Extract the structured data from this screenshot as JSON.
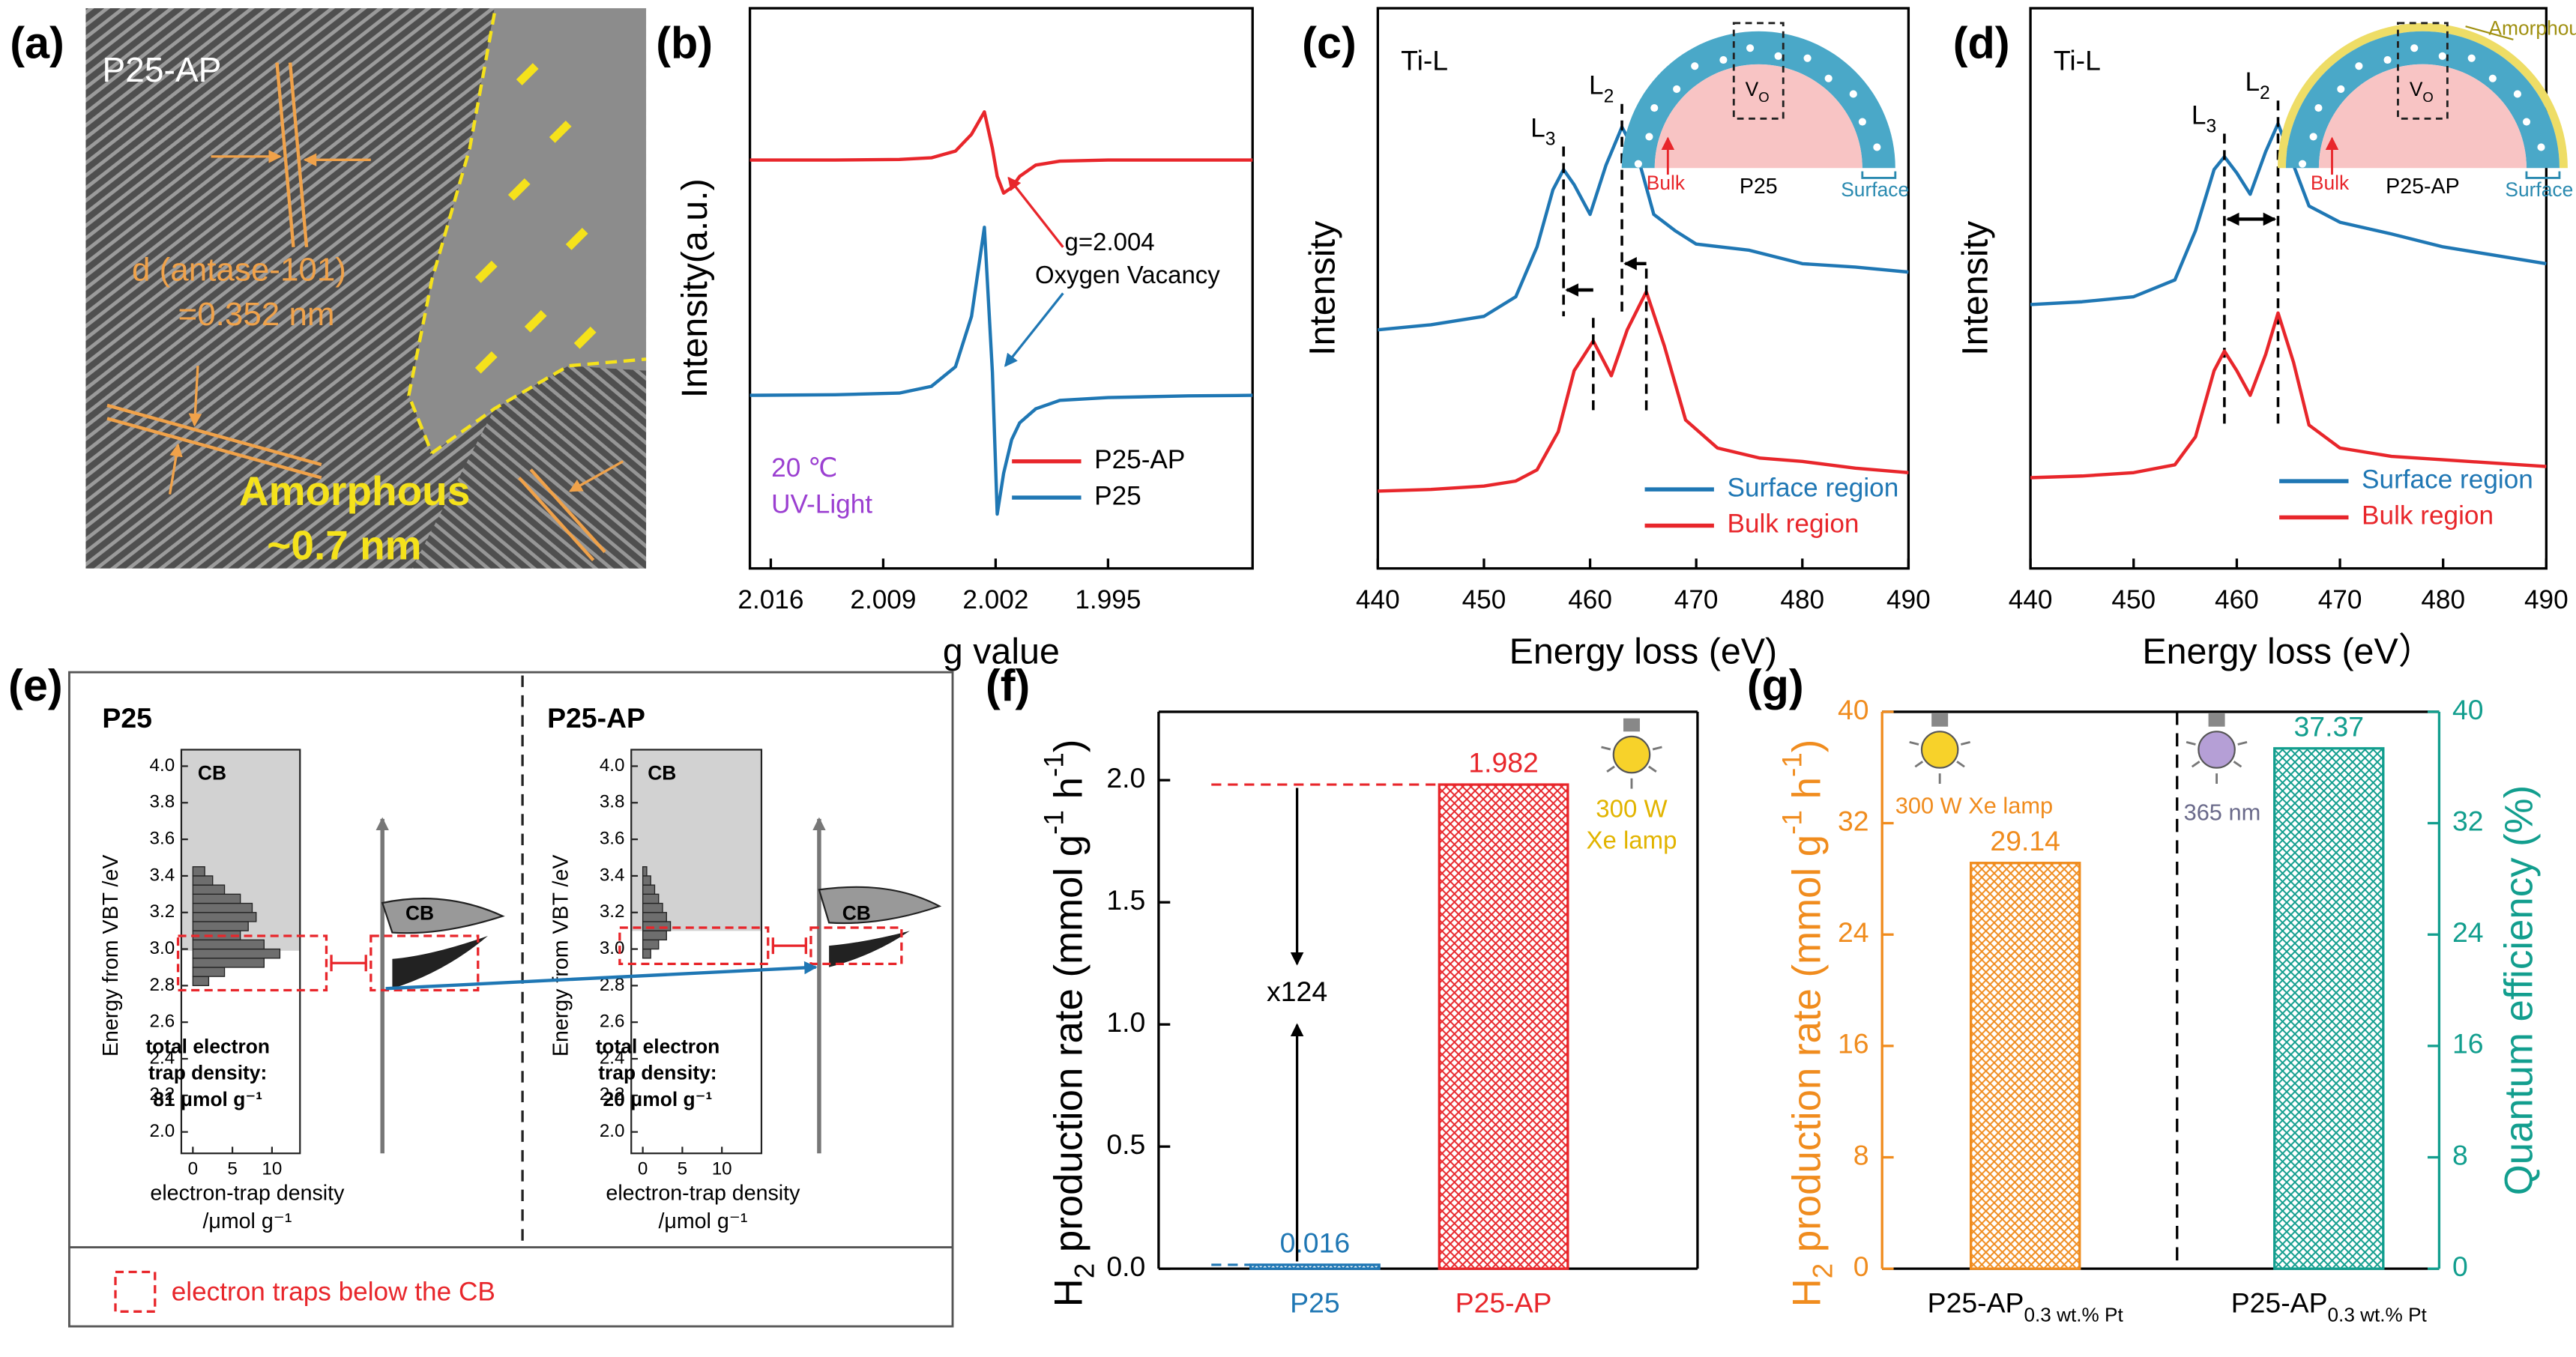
{
  "panels": {
    "a": {
      "label": "(a)",
      "sample": "P25-AP",
      "d_label": "d (antase-101)",
      "d_value": "=0.352 nm",
      "amorphous": "Amorphous",
      "thickness": "~0.7 nm"
    },
    "e": {
      "label": "(e)",
      "ylabel": "Energy from VBT /eV",
      "yticks": [
        {
          "value": 2,
          "label": "2.0"
        },
        2.2,
        2.4,
        2.6,
        2.8,
        {
          "value": 3,
          "label": "3.0"
        },
        3.2,
        3.4,
        3.6,
        3.8,
        {
          "value": 4,
          "label": "4.0"
        }
      ],
      "xticks": [
        0,
        5,
        10
      ],
      "xlabel": [
        "electron-trap density",
        "/μmol g⁻¹"
      ],
      "legend": "electron traps below the CB",
      "left": {
        "title": "P25",
        "cb": "CB",
        "trap_text": [
          "total electron",
          "trap density:",
          "81 μmol g⁻¹"
        ],
        "schematic_cb": "CB",
        "hist": {
          "energy": [
            2.825,
            2.875,
            2.925,
            2.975,
            3.025,
            3.075,
            3.125,
            3.175,
            3.225,
            3.275,
            3.325,
            3.375,
            3.425
          ],
          "values": [
            2,
            4,
            9,
            11,
            9,
            6,
            7,
            8,
            7.5,
            6,
            4,
            2.5,
            1.5
          ]
        }
      },
      "right": {
        "title": "P25-AP",
        "cb": "CB",
        "trap_text": [
          "total electron",
          "trap density:",
          "20 μmol g⁻¹"
        ],
        "schematic_cb": "CB",
        "hist": {
          "energy": [
            2.975,
            3.025,
            3.075,
            3.125,
            3.175,
            3.225,
            3.275,
            3.325,
            3.375,
            3.425
          ],
          "values": [
            1,
            2,
            3,
            3.5,
            3,
            2.5,
            2,
            1.5,
            1,
            0.5
          ]
        }
      }
    }
  },
  "chart_data": [
    {
      "type": "line",
      "panel_label": "(b)",
      "xlabel": "g value",
      "ylabel": "Intensity(a.u.)",
      "xlim": [
        2.0173,
        1.986
      ],
      "xticks": [
        2.016,
        2.009,
        2.002,
        1.995
      ],
      "ylim": [
        0,
        10
      ],
      "x": [
        2.0173,
        2.012,
        2.008,
        2.006,
        2.0045,
        2.0035,
        2.0027,
        2.0022,
        2.0019,
        2.0015,
        2.001,
        2.0005,
        1.9995,
        1.998,
        1.995,
        1.99,
        1.986
      ],
      "series": [
        {
          "name": "P25-AP",
          "color": "#e8262b",
          "values": [
            7.29,
            7.29,
            7.3,
            7.33,
            7.45,
            7.75,
            8.15,
            7.5,
            7.0,
            6.7,
            6.8,
            7.0,
            7.2,
            7.27,
            7.29,
            7.29,
            7.29
          ]
        },
        {
          "name": "P25",
          "color": "#1f77b4",
          "values": [
            3.09,
            3.1,
            3.13,
            3.25,
            3.6,
            4.5,
            6.09,
            3.5,
            0.97,
            1.7,
            2.3,
            2.6,
            2.85,
            3.0,
            3.05,
            3.08,
            3.09
          ]
        }
      ],
      "annotations": [
        "g=2.004",
        "Oxygen Vacancy"
      ],
      "conditions": [
        "20 ℃",
        "UV-Light"
      ],
      "legend": "lower right"
    },
    {
      "type": "line",
      "panel_label": "(c)",
      "label": "Ti-L",
      "xlabel": "Energy loss (eV)",
      "ylabel": "Intensity",
      "xlim": [
        440,
        490
      ],
      "xticks": [
        440,
        450,
        460,
        470,
        480,
        490
      ],
      "ylim": [
        0,
        10
      ],
      "series": [
        {
          "name": "Surface region",
          "color": "#1f77b4",
          "x": [
            440,
            445,
            450,
            453,
            455,
            456.5,
            457.5,
            458.5,
            460,
            461.5,
            463,
            464.5,
            466,
            468,
            470,
            475,
            480,
            485,
            490
          ],
          "values": [
            4.26,
            4.35,
            4.5,
            4.85,
            5.74,
            6.76,
            7.12,
            6.85,
            6.32,
            7.2,
            7.88,
            7.35,
            6.32,
            6.03,
            5.79,
            5.68,
            5.44,
            5.38,
            5.29
          ]
        },
        {
          "name": "Bulk region",
          "color": "#e8262b",
          "x": [
            440,
            445,
            450,
            453,
            455,
            457,
            458.5,
            460.3,
            462,
            463.5,
            465.3,
            467,
            469,
            472,
            476,
            480,
            485,
            490
          ],
          "values": [
            1.38,
            1.41,
            1.47,
            1.56,
            1.76,
            2.44,
            3.53,
            4.06,
            3.44,
            4.26,
            4.94,
            3.97,
            2.65,
            2.15,
            1.97,
            1.91,
            1.79,
            1.71
          ]
        }
      ],
      "peak_labels": [
        [
          "L",
          "3"
        ],
        [
          "L",
          "2"
        ]
      ],
      "inset": {
        "vacancy": [
          "V",
          "O"
        ],
        "bulk": "Bulk",
        "sample": "P25",
        "surface": "Surface"
      },
      "legend": "lower right"
    },
    {
      "type": "line",
      "panel_label": "(d)",
      "label": "Ti-L",
      "xlabel": "Energy loss (eV）",
      "ylabel": "Intensity",
      "xlim": [
        440,
        490
      ],
      "xticks": [
        440,
        450,
        460,
        470,
        480,
        490
      ],
      "ylim": [
        0,
        10
      ],
      "series": [
        {
          "name": "Surface region",
          "color": "#1f77b4",
          "x": [
            440,
            445,
            450,
            454,
            456,
            457.8,
            458.8,
            460,
            461.3,
            462.8,
            464,
            465.5,
            467,
            470,
            475,
            480,
            485,
            490
          ],
          "values": [
            4.71,
            4.76,
            4.85,
            5.15,
            6.03,
            7.12,
            7.35,
            7.06,
            6.68,
            7.44,
            7.94,
            7.2,
            6.47,
            6.18,
            5.97,
            5.74,
            5.59,
            5.44
          ]
        },
        {
          "name": "Bulk region",
          "color": "#e8262b",
          "x": [
            440,
            445,
            450,
            454,
            456,
            457.8,
            458.8,
            460,
            461.3,
            462.8,
            464,
            465.5,
            467,
            470,
            475,
            480,
            485,
            490
          ],
          "values": [
            1.62,
            1.65,
            1.71,
            1.85,
            2.35,
            3.53,
            3.88,
            3.53,
            3.09,
            3.82,
            4.56,
            3.68,
            2.56,
            2.15,
            2.0,
            1.94,
            1.88,
            1.82
          ]
        }
      ],
      "peak_labels": [
        [
          "L",
          "3"
        ],
        [
          "L",
          "2"
        ]
      ],
      "inset": {
        "vacancy": [
          "V",
          "O"
        ],
        "bulk": "Bulk",
        "sample": "P25-AP",
        "surface": "Surface",
        "amorphous": "Amorphous"
      },
      "legend": "lower right"
    },
    {
      "type": "bar",
      "panel_label": "(f)",
      "categories": [
        "P25",
        "P25-AP"
      ],
      "values": [
        0.016,
        1.982
      ],
      "colors": [
        "#1f77b4",
        "#e8262b"
      ],
      "ylim": [
        0,
        2.28
      ],
      "yticks": [
        {
          "value": 0,
          "label": "0.0"
        },
        0.5,
        {
          "value": 1,
          "label": "1.0"
        },
        1.5,
        {
          "value": 2,
          "label": "2.0"
        }
      ],
      "ylabel": [
        "H",
        "2",
        " production rate (mmol g",
        "-1",
        " h",
        "-1",
        ")"
      ],
      "annotations": [
        "x124"
      ],
      "lamps": [
        "300 W",
        "Xe lamp"
      ]
    },
    {
      "type": "bar",
      "panel_label": "(g)",
      "categories": [
        "P25-AP",
        "P25-AP"
      ],
      "category_subscripts": [
        "0.3 wt.% Pt",
        "0.3 wt.% Pt"
      ],
      "series": [
        {
          "color": "#f08c1e",
          "values": [
            29.14,
            null
          ]
        },
        {
          "color": "#129e8e",
          "values": [
            null,
            37.37
          ],
          "axis": "y2"
        }
      ],
      "ylim": [
        0,
        40
      ],
      "yticks": [
        0,
        8,
        16,
        24,
        32,
        40
      ],
      "y2lim": [
        0,
        40
      ],
      "y2ticks": [
        0,
        8,
        16,
        24,
        32,
        40
      ],
      "ylabel": [
        "H",
        "2",
        " production rate (mmol g",
        "-1",
        " h",
        "-1",
        ")"
      ],
      "y2label": "Quantum efficiency (%)",
      "lamps": [
        "300 W Xe lamp",
        "365 nm"
      ]
    }
  ]
}
